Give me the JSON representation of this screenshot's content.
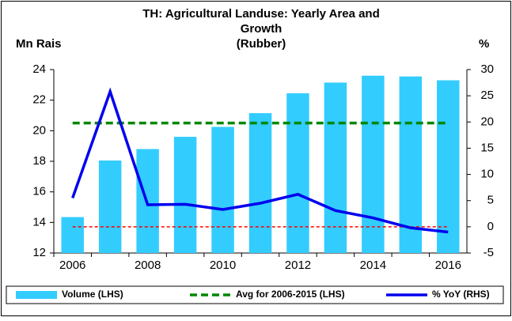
{
  "chart_data": {
    "type": "bar_line",
    "title": [
      "TH: Agricultural Landuse: Yearly Area and",
      "Growth",
      "(Rubber)"
    ],
    "y_label": "Mn Rais",
    "y2_label": "%",
    "categories": [
      "2006",
      null,
      "2008",
      null,
      "2010",
      null,
      "2012",
      null,
      "2014",
      null,
      "2016"
    ],
    "series": [
      {
        "name": "Volume (LHS)",
        "type": "bar",
        "color": "#33ccff",
        "values": [
          14.35,
          18.05,
          18.8,
          19.6,
          20.25,
          21.15,
          22.45,
          23.15,
          23.6,
          23.55,
          23.3
        ]
      },
      {
        "name": "Avg for 2006-2015 (LHS)",
        "type": "line",
        "dashed": true,
        "color": "#008800",
        "values": [
          20.5,
          20.5,
          20.5,
          20.5,
          20.5,
          20.5,
          20.5,
          20.5,
          20.5,
          20.5,
          20.5
        ]
      },
      {
        "name": "% YoY (RHS)",
        "type": "line",
        "axis": "y2",
        "color": "#0000ee",
        "values": [
          5.5,
          25.8,
          4.2,
          4.3,
          3.3,
          4.5,
          6.2,
          3.1,
          1.7,
          -0.2,
          -1.0
        ]
      }
    ],
    "ylim": [
      12,
      24
    ],
    "yticks": [
      12,
      14,
      16,
      18,
      20,
      22,
      24
    ],
    "y2lim": [
      -5,
      30
    ],
    "y2ticks": [
      -5,
      0,
      5,
      10,
      15,
      20,
      25,
      30
    ],
    "zero_line_color": "#ff0000",
    "legend": "bottom"
  }
}
